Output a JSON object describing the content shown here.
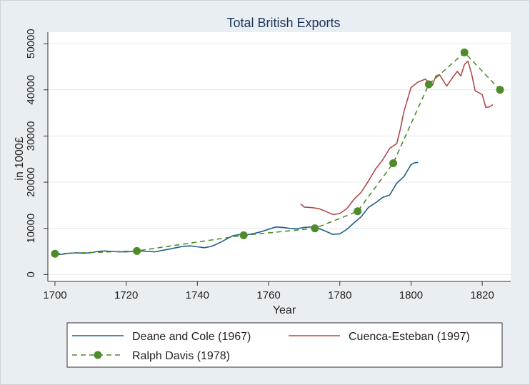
{
  "chart_data": {
    "type": "line",
    "title": "Total British Exports",
    "xlabel": "Year",
    "ylabel": "in 1000£",
    "xlim": [
      1698,
      1828
    ],
    "ylim": [
      -1500,
      52500
    ],
    "xticks": [
      1700,
      1720,
      1740,
      1760,
      1780,
      1800,
      1820
    ],
    "yticks": [
      0,
      10000,
      20000,
      30000,
      40000,
      50000
    ],
    "grid": true,
    "legend_position": "bottom",
    "series": [
      {
        "name": "Deane and Cole (1967)",
        "style": "solid",
        "color": "#1f5f8b",
        "x": [
          1700,
          1702,
          1704,
          1706,
          1708,
          1710,
          1712,
          1714,
          1716,
          1718,
          1720,
          1722,
          1724,
          1726,
          1728,
          1730,
          1732,
          1734,
          1736,
          1738,
          1740,
          1742,
          1744,
          1746,
          1748,
          1750,
          1752,
          1754,
          1756,
          1758,
          1760,
          1762,
          1764,
          1766,
          1768,
          1770,
          1772,
          1774,
          1776,
          1778,
          1780,
          1782,
          1784,
          1786,
          1788,
          1790,
          1792,
          1794,
          1796,
          1798,
          1800,
          1801,
          1802
        ],
        "y": [
          4300,
          4400,
          4600,
          4700,
          4600,
          4700,
          5000,
          5100,
          5000,
          4900,
          4900,
          5000,
          5100,
          5000,
          4900,
          5200,
          5500,
          5800,
          6100,
          6200,
          6000,
          5800,
          6100,
          6800,
          7600,
          8400,
          8700,
          8600,
          8900,
          9300,
          9800,
          10300,
          10200,
          10000,
          9900,
          10200,
          10300,
          10000,
          9400,
          8700,
          8800,
          9800,
          11200,
          12500,
          14500,
          15500,
          16700,
          17200,
          19800,
          21200,
          23800,
          24200,
          24300
        ]
      },
      {
        "name": "Cuenca-Esteban (1997)",
        "style": "solid",
        "color": "#b04a4a",
        "x": [
          1769,
          1770,
          1772,
          1774,
          1776,
          1778,
          1780,
          1782,
          1784,
          1786,
          1788,
          1790,
          1792,
          1794,
          1796,
          1797,
          1798,
          1800,
          1802,
          1804,
          1806,
          1807,
          1808,
          1810,
          1812,
          1813,
          1814,
          1815,
          1816,
          1817,
          1818,
          1820,
          1821,
          1822,
          1823
        ],
        "y": [
          15300,
          14600,
          14500,
          14300,
          13700,
          13000,
          13200,
          14300,
          16300,
          17800,
          20200,
          22800,
          24800,
          27300,
          28400,
          31500,
          35300,
          40500,
          41700,
          42300,
          41000,
          43000,
          43300,
          40800,
          43000,
          44000,
          43000,
          45500,
          46200,
          43500,
          39800,
          39000,
          36200,
          36300,
          36800
        ]
      },
      {
        "name": "Ralph Davis (1978)",
        "style": "dashed-markers",
        "color": "#4e8c2a",
        "x": [
          1700,
          1723,
          1753,
          1773,
          1785,
          1795,
          1805,
          1815,
          1825
        ],
        "y": [
          4500,
          5100,
          8500,
          10000,
          13700,
          24100,
          41200,
          48100,
          40000
        ]
      }
    ]
  },
  "legend": {
    "items": [
      {
        "label": "Deane and Cole (1967)"
      },
      {
        "label": "Cuenca-Esteban (1997)"
      },
      {
        "label": "Ralph Davis (1978)"
      }
    ]
  }
}
